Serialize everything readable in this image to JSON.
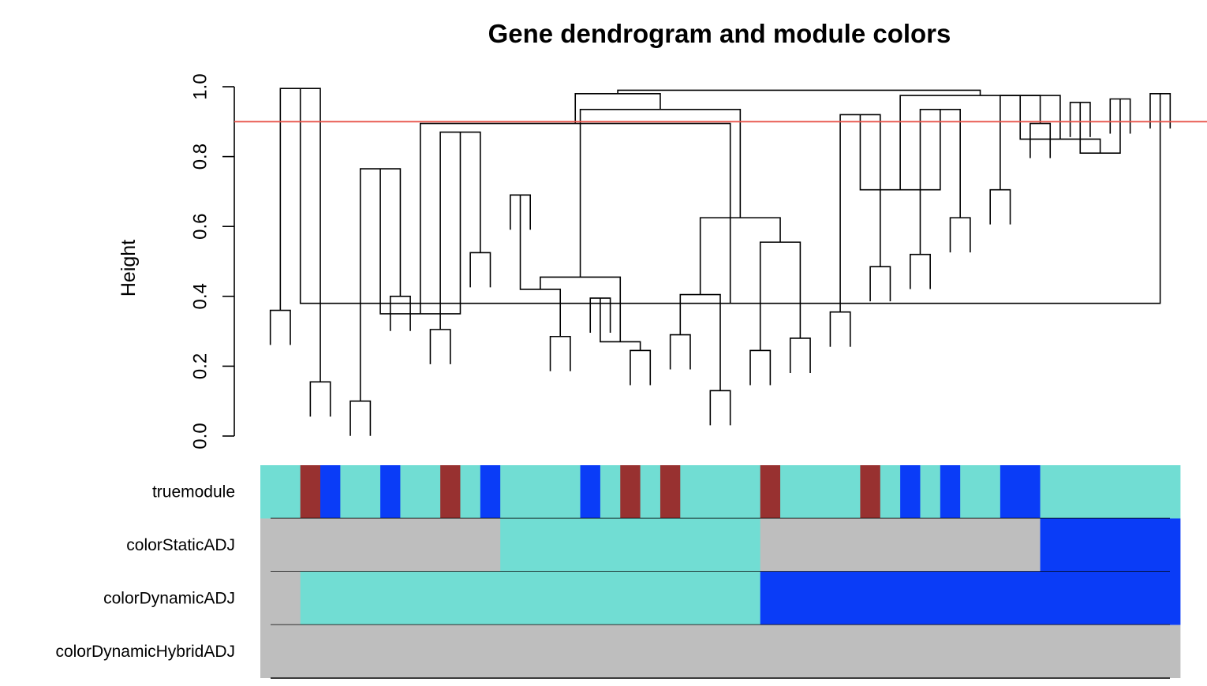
{
  "chart_data": {
    "type": "dendrogram",
    "title": "Gene dendrogram and module colors",
    "ylabel": "Height",
    "ylim": [
      0,
      1
    ],
    "yticks": [
      "0.0",
      "0.2",
      "0.4",
      "0.6",
      "0.8",
      "1.0"
    ],
    "cut_height": 0.9,
    "colors": {
      "turquoise": "#71DDD3",
      "brown": "#983130",
      "blue": "#0A3CF7",
      "grey": "#BEBEBE",
      "cut_line": "#E8544A"
    },
    "leaf_count": 46,
    "merges": [
      [
        0,
        1,
        0.36
      ],
      [
        2,
        3,
        0.155
      ],
      [
        4,
        5,
        0.1
      ],
      [
        6,
        7,
        0.4
      ],
      [
        8,
        9,
        0.305
      ],
      [
        10,
        11,
        0.525
      ],
      [
        12,
        13,
        0.69
      ],
      [
        14,
        15,
        0.285
      ],
      [
        16,
        17,
        0.395
      ],
      [
        18,
        19,
        0.245
      ],
      [
        20,
        21,
        0.29
      ],
      [
        22,
        23,
        0.13
      ],
      [
        24,
        25,
        0.245
      ],
      [
        26,
        27,
        0.28
      ],
      [
        28,
        29,
        0.355
      ],
      [
        30,
        31,
        0.485
      ],
      [
        32,
        33,
        0.52
      ],
      [
        34,
        35,
        0.625
      ],
      [
        36,
        37,
        0.705
      ],
      [
        38,
        39,
        0.895
      ],
      [
        40,
        41,
        0.955
      ],
      [
        42,
        43,
        0.965
      ],
      [
        44,
        45,
        0.98
      ],
      [
        46,
        47,
        0.995
      ],
      [
        48,
        49,
        0.765
      ],
      [
        50,
        51,
        0.87
      ],
      [
        52,
        53,
        0.42
      ],
      [
        54,
        55,
        0.27
      ],
      [
        56,
        57,
        0.405
      ],
      [
        58,
        59,
        0.555
      ],
      [
        60,
        61,
        0.92
      ],
      [
        62,
        63,
        0.935
      ],
      [
        64,
        65,
        0.975
      ],
      [
        66,
        67,
        0.81
      ],
      [
        68,
        69,
        0.38
      ],
      [
        70,
        71,
        0.35
      ],
      [
        72,
        73,
        0.455
      ],
      [
        74,
        75,
        0.625
      ],
      [
        76,
        77,
        0.705
      ],
      [
        78,
        79,
        0.85
      ],
      [
        80,
        81,
        0.895
      ],
      [
        82,
        83,
        0.935
      ],
      [
        84,
        85,
        0.975
      ],
      [
        86,
        87,
        0.98
      ],
      [
        88,
        89,
        0.99
      ]
    ],
    "color_rows": [
      {
        "label": "truemodule",
        "segments": [
          [
            "turquoise",
            2
          ],
          [
            "brown",
            1
          ],
          [
            "blue",
            1
          ],
          [
            "turquoise",
            2
          ],
          [
            "blue",
            1
          ],
          [
            "turquoise",
            2
          ],
          [
            "brown",
            1
          ],
          [
            "turquoise",
            1
          ],
          [
            "blue",
            1
          ],
          [
            "turquoise",
            4
          ],
          [
            "blue",
            1
          ],
          [
            "turquoise",
            1
          ],
          [
            "brown",
            1
          ],
          [
            "turquoise",
            1
          ],
          [
            "brown",
            1
          ],
          [
            "turquoise",
            4
          ],
          [
            "brown",
            1
          ],
          [
            "turquoise",
            4
          ],
          [
            "brown",
            1
          ],
          [
            "turquoise",
            1
          ],
          [
            "blue",
            1
          ],
          [
            "turquoise",
            1
          ],
          [
            "blue",
            1
          ],
          [
            "turquoise",
            2
          ],
          [
            "blue",
            2
          ],
          [
            "turquoise",
            7
          ]
        ]
      },
      {
        "label": "colorStaticADJ",
        "segments": [
          [
            "grey",
            12
          ],
          [
            "turquoise",
            13
          ],
          [
            "grey",
            14
          ],
          [
            "blue",
            7
          ]
        ]
      },
      {
        "label": "colorDynamicADJ",
        "segments": [
          [
            "grey",
            2
          ],
          [
            "turquoise",
            23
          ],
          [
            "blue",
            21
          ]
        ]
      },
      {
        "label": "colorDynamicHybridADJ",
        "segments": [
          [
            "grey",
            46
          ]
        ]
      }
    ]
  }
}
